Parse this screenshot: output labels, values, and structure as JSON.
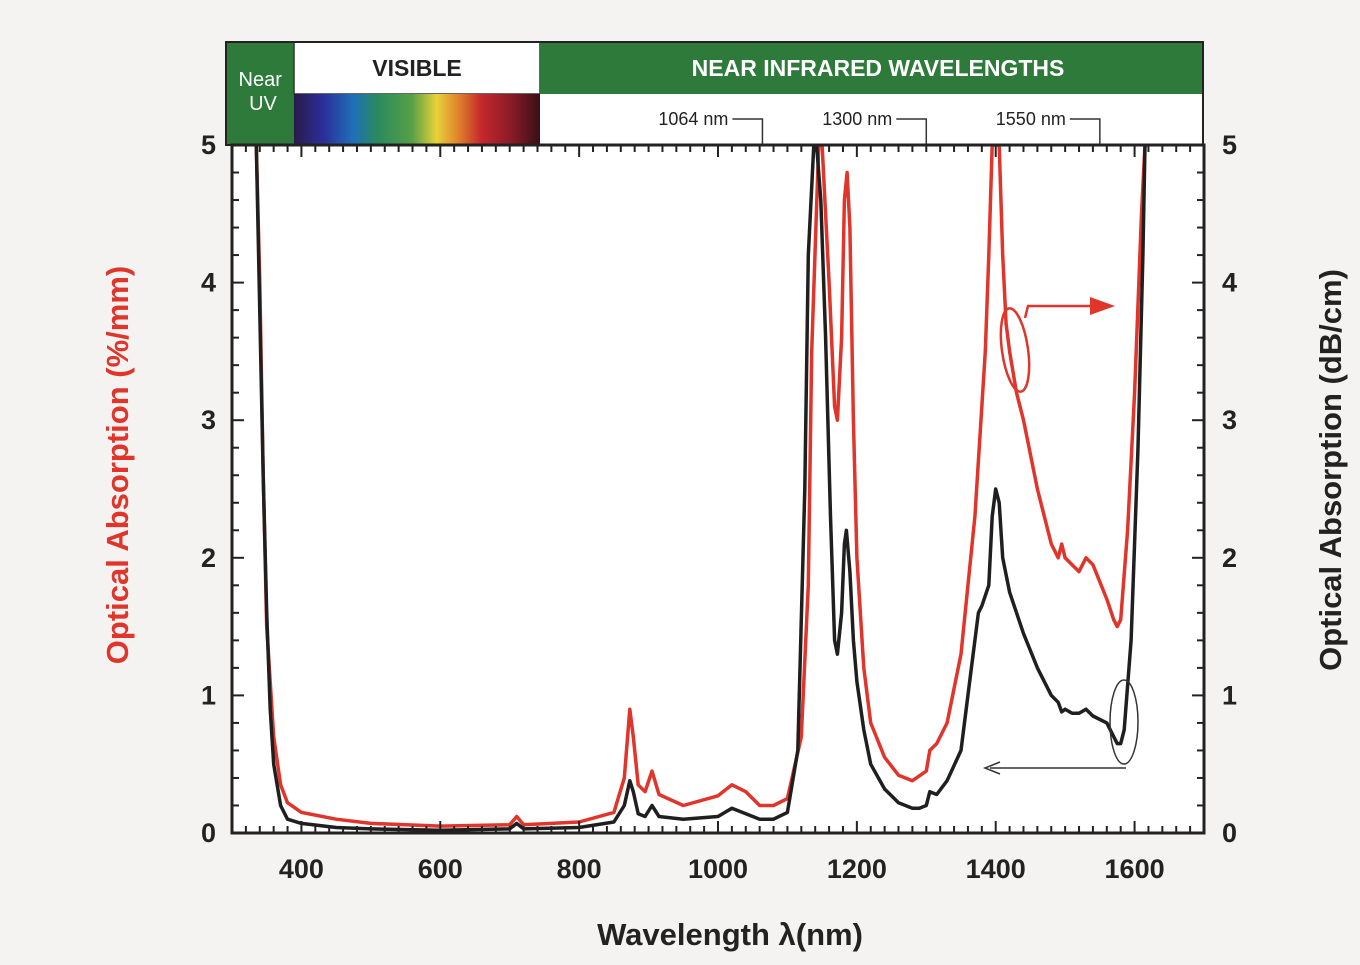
{
  "header": {
    "near_uv": "Near\nUV",
    "visible": "VISIBLE",
    "near_infrared": "NEAR INFRARED WAVELENGTHS",
    "markers": [
      {
        "label": "1064 nm",
        "x": 1064
      },
      {
        "label": "1300 nm",
        "x": 1300
      },
      {
        "label": "1550 nm",
        "x": 1550
      }
    ]
  },
  "colors": {
    "header_green": "#2e7a3a",
    "red_series": "#e0352b",
    "black_series": "#1f1f1f",
    "axis": "#222222"
  },
  "chart_data": {
    "type": "line",
    "xlabel": "Wavelength λ(nm)",
    "ylabel_left": "Optical Absorption (%/mm)",
    "ylabel_right": "Optical Absorption (dB/cm)",
    "xlim": [
      300,
      1700
    ],
    "ylim": [
      0,
      5
    ],
    "x_ticks": [
      400,
      600,
      800,
      1000,
      1200,
      1400,
      1600
    ],
    "y_ticks": [
      0,
      1,
      2,
      3,
      4,
      5
    ],
    "series": [
      {
        "color": "#e0352b",
        "axis": "right",
        "x": [
          335,
          340,
          345,
          350,
          360,
          370,
          380,
          400,
          450,
          500,
          600,
          700,
          710,
          720,
          800,
          850,
          865,
          873,
          878,
          885,
          895,
          905,
          915,
          950,
          1000,
          1020,
          1040,
          1060,
          1080,
          1100,
          1120,
          1130,
          1135,
          1145,
          1150,
          1160,
          1168,
          1172,
          1178,
          1182,
          1186,
          1190,
          1195,
          1200,
          1210,
          1220,
          1240,
          1260,
          1280,
          1300,
          1305,
          1315,
          1330,
          1350,
          1370,
          1385,
          1390,
          1395,
          1400,
          1405,
          1410,
          1415,
          1420,
          1430,
          1440,
          1460,
          1480,
          1490,
          1495,
          1500,
          1510,
          1520,
          1530,
          1540,
          1560,
          1570,
          1575,
          1580,
          1590,
          1600,
          1610,
          1615,
          1620
        ],
        "y": [
          5.0,
          4.0,
          2.6,
          1.5,
          0.7,
          0.35,
          0.22,
          0.15,
          0.1,
          0.07,
          0.05,
          0.06,
          0.12,
          0.06,
          0.08,
          0.15,
          0.4,
          0.9,
          0.7,
          0.35,
          0.3,
          0.45,
          0.28,
          0.2,
          0.27,
          0.35,
          0.3,
          0.2,
          0.2,
          0.25,
          0.7,
          1.8,
          3.5,
          5.0,
          5.0,
          4.0,
          3.1,
          3.0,
          3.6,
          4.6,
          4.8,
          4.4,
          3.0,
          2.0,
          1.2,
          0.8,
          0.55,
          0.42,
          0.38,
          0.45,
          0.6,
          0.65,
          0.8,
          1.3,
          2.3,
          3.5,
          4.2,
          5.0,
          5.0,
          5.0,
          4.2,
          3.7,
          3.5,
          3.2,
          3.0,
          2.5,
          2.1,
          2.0,
          2.1,
          2.0,
          1.95,
          1.9,
          2.0,
          1.95,
          1.7,
          1.55,
          1.5,
          1.55,
          2.2,
          3.2,
          4.5,
          5.0,
          5.0
        ]
      },
      {
        "color": "#1f1f1f",
        "axis": "left",
        "x": [
          335,
          345,
          350,
          355,
          360,
          370,
          380,
          400,
          450,
          500,
          600,
          700,
          710,
          720,
          800,
          850,
          865,
          873,
          878,
          885,
          895,
          905,
          915,
          950,
          1000,
          1020,
          1040,
          1060,
          1080,
          1100,
          1115,
          1125,
          1130,
          1138,
          1142,
          1148,
          1155,
          1162,
          1168,
          1172,
          1178,
          1182,
          1185,
          1190,
          1195,
          1200,
          1210,
          1220,
          1240,
          1260,
          1280,
          1290,
          1300,
          1305,
          1315,
          1330,
          1350,
          1365,
          1375,
          1380,
          1390,
          1395,
          1400,
          1405,
          1410,
          1420,
          1440,
          1460,
          1480,
          1490,
          1495,
          1500,
          1510,
          1520,
          1530,
          1540,
          1560,
          1570,
          1575,
          1580,
          1585,
          1595,
          1605,
          1612,
          1615
        ],
        "y": [
          5.0,
          2.6,
          1.6,
          0.9,
          0.5,
          0.2,
          0.1,
          0.07,
          0.04,
          0.03,
          0.02,
          0.03,
          0.07,
          0.03,
          0.04,
          0.08,
          0.2,
          0.38,
          0.3,
          0.14,
          0.12,
          0.2,
          0.12,
          0.1,
          0.12,
          0.18,
          0.14,
          0.1,
          0.1,
          0.15,
          0.6,
          2.5,
          4.2,
          5.0,
          5.0,
          4.6,
          3.6,
          2.3,
          1.4,
          1.3,
          1.6,
          2.1,
          2.2,
          1.9,
          1.4,
          1.1,
          0.75,
          0.5,
          0.32,
          0.22,
          0.18,
          0.18,
          0.2,
          0.3,
          0.28,
          0.38,
          0.6,
          1.2,
          1.6,
          1.65,
          1.8,
          2.3,
          2.5,
          2.4,
          2.0,
          1.75,
          1.45,
          1.2,
          1.0,
          0.95,
          0.88,
          0.9,
          0.87,
          0.87,
          0.9,
          0.85,
          0.8,
          0.7,
          0.65,
          0.65,
          0.75,
          1.4,
          2.8,
          4.2,
          5.0
        ]
      }
    ]
  }
}
